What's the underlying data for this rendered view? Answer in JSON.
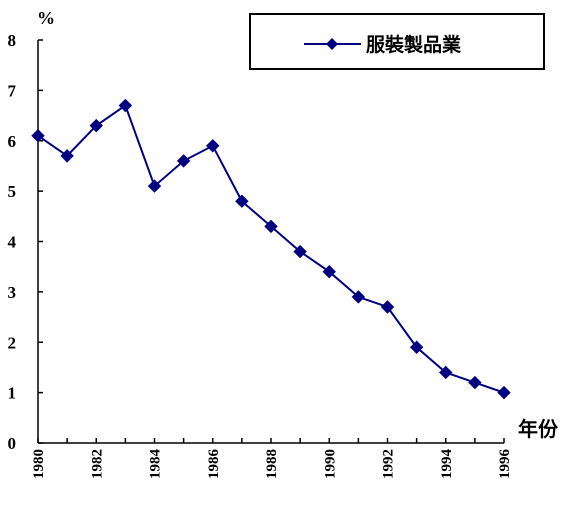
{
  "chart_data": {
    "type": "line",
    "ylabel": "%",
    "xlabel": "年份",
    "ylim": [
      0,
      8
    ],
    "yticks": [
      "0",
      "1",
      "2",
      "3",
      "4",
      "5",
      "6",
      "7",
      "8"
    ],
    "x": [
      "1980",
      "1981",
      "1982",
      "1983",
      "1984",
      "1985",
      "1986",
      "1987",
      "1988",
      "1989",
      "1990",
      "1991",
      "1992",
      "1993",
      "1994",
      "1995",
      "1996"
    ],
    "xtick_labels": [
      "1980",
      "1982",
      "1984",
      "1986",
      "1988",
      "1990",
      "1992",
      "1994",
      "1996"
    ],
    "series": [
      {
        "name": "服裝製品業",
        "values": [
          6.1,
          5.7,
          6.3,
          6.7,
          5.1,
          5.6,
          5.9,
          4.8,
          4.3,
          3.8,
          3.4,
          2.9,
          2.7,
          1.9,
          1.4,
          1.2,
          1.0
        ],
        "color": "#000080",
        "marker": "diamond"
      }
    ],
    "grid": false,
    "legend_position": "top-right"
  }
}
